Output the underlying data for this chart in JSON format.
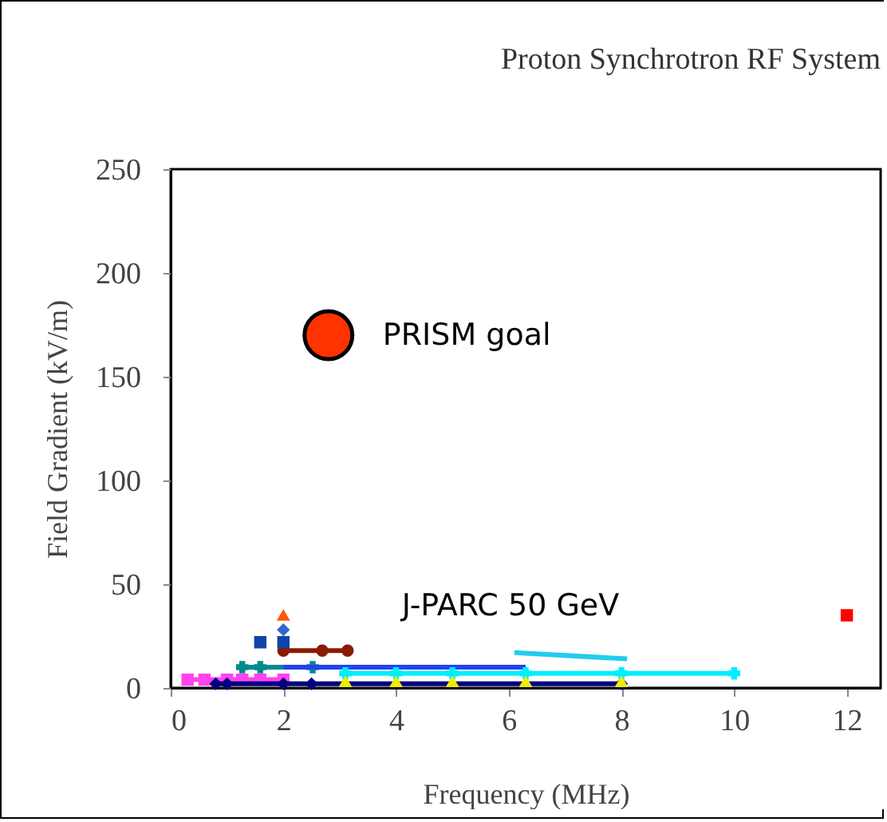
{
  "chart_data": {
    "type": "scatter",
    "title": "Proton Synchrotron RF System",
    "xlabel": "Frequency (MHz)",
    "ylabel": "Field Gradient (kV/m)",
    "xlim": [
      0,
      12.6
    ],
    "ylim": [
      0,
      250
    ],
    "xticks": [
      0,
      2,
      4,
      6,
      8,
      10,
      12
    ],
    "yticks": [
      0,
      50,
      100,
      150,
      200,
      250
    ],
    "annotations": [
      {
        "text": "PRISM goal",
        "x": 2.8,
        "y": 170
      },
      {
        "text": "J-PARC 50 GeV",
        "x": 3.14,
        "y": 18
      }
    ],
    "series": [
      {
        "marker": "circle",
        "color": "#ff3300",
        "x": [
          2.8
        ],
        "values": [
          170
        ]
      },
      {
        "type": "line",
        "marker": "circle",
        "color": "#8b1a00",
        "x": [
          2.0,
          2.69,
          3.14
        ],
        "values": [
          18,
          18,
          18
        ]
      },
      {
        "type": "line",
        "marker": "square",
        "color": "#ff44ee",
        "x": [
          0.3,
          0.6,
          1.0,
          1.27,
          1.59,
          2.0
        ],
        "values": [
          4,
          4,
          4,
          4,
          4,
          4
        ]
      },
      {
        "type": "line",
        "marker": "diamond",
        "color": "#000080",
        "x": [
          0.8,
          1.0,
          2.0,
          2.5,
          8.0
        ],
        "values": [
          2,
          2,
          2,
          2,
          2
        ]
      },
      {
        "type": "line",
        "marker": "cross",
        "color": "#008b8b",
        "x": [
          1.27,
          1.59,
          2.52
        ],
        "values": [
          10,
          10,
          10
        ]
      },
      {
        "type": "line",
        "marker": "none",
        "color": "#2244ee",
        "x": [
          2.0,
          6.3
        ],
        "values": [
          10,
          10
        ]
      },
      {
        "type": "line",
        "marker": "none",
        "color": "#22ccee",
        "x": [
          6.1,
          8.1
        ],
        "values": [
          17,
          14
        ]
      },
      {
        "type": "line",
        "marker": "cross",
        "color": "#00eeff",
        "x": [
          3.1,
          4.0,
          5.0,
          6.3,
          8.0,
          10.0
        ],
        "values": [
          7,
          7,
          7,
          7,
          7,
          7
        ]
      },
      {
        "marker": "triangle",
        "color": "#eeee00",
        "x": [
          3.1,
          4.0,
          5.0,
          6.3,
          8.0
        ],
        "values": [
          3,
          3,
          3,
          3,
          3
        ]
      },
      {
        "marker": "triangle",
        "color": "#ff5500",
        "x": [
          2.0
        ],
        "values": [
          35
        ]
      },
      {
        "marker": "diamond",
        "color": "#3366cc",
        "x": [
          2.0
        ],
        "values": [
          28
        ]
      },
      {
        "marker": "square",
        "color": "#1144aa",
        "x": [
          1.59,
          2.0
        ],
        "values": [
          22,
          22
        ]
      },
      {
        "marker": "square",
        "color": "#ff0000",
        "x": [
          12.0
        ],
        "values": [
          35
        ]
      }
    ]
  }
}
